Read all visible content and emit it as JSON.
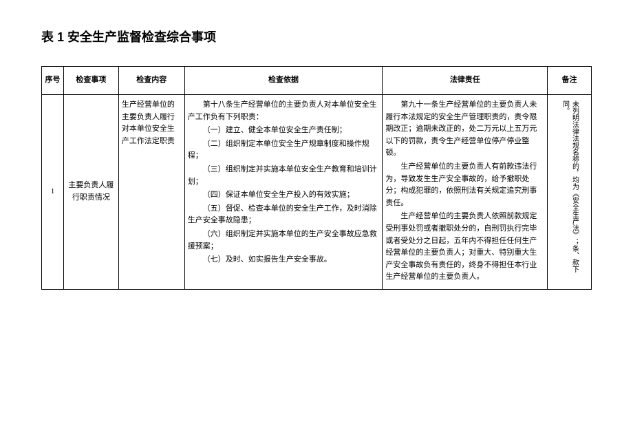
{
  "title": "表 1 安全生产监督检查综合事项",
  "headers": {
    "seq": "序号",
    "item": "检查事项",
    "content": "检查内容",
    "basis": "检查依据",
    "law": "法律责任",
    "note": "备注"
  },
  "row": {
    "seq": "1",
    "item": "主要负责人履行职责情况",
    "content": "生产经营单位的主要负责人履行对本单位安全生产工作法定职责",
    "basis_p1": "第十八条生产经营单位的主要负责人对本单位安全生产工作负有下列职责：",
    "basis_p2": "（一）建立、健全本单位安全生产责任制；",
    "basis_p3": "（二）组织制定本单位安全生产规章制度和操作规程；",
    "basis_p4": "（三）组织制定并实施本单位安全生产教育和培训计划；",
    "basis_p5": "（四）保证本单位安全生产投入的有效实施；",
    "basis_p6": "（五）督促、检查本单位的安全生产工作，及时消除生产安全事故隐患；",
    "basis_p7": "（六）组织制定并实施本单位的生产安全事故应急救援预案；",
    "basis_p8": "（七）及时、如实报告生产安全事故。",
    "law_p1": "第九十一条生产经营单位的主要负责人未履行本法规定的安全生产管理职责的，责令限期改正；逾期未改正的，处二万元以上五万元以下的罚款，责令生产经营单位停产停业整顿。",
    "law_p2": "生产经营单位的主要负责人有前款违法行为，导致发生生产安全事故的，给予撤职处分；构成犯罪的，依照刑法有关规定追究刑事责任。",
    "law_p3": "生产经营单位的主要负责人依照前款规定受刑事处罚或者撤职处分的，自刑罚执行完毕或者受处分之日起，五年内不得担任任何生产经营单位的主要负责人；对重大、特别重大生产安全事故负有责任的，终身不得担任本行业生产经营单位的主要负责人。",
    "note_text": "未列明法律法规名称的，均为《安全生产法》；条、款下同。"
  }
}
